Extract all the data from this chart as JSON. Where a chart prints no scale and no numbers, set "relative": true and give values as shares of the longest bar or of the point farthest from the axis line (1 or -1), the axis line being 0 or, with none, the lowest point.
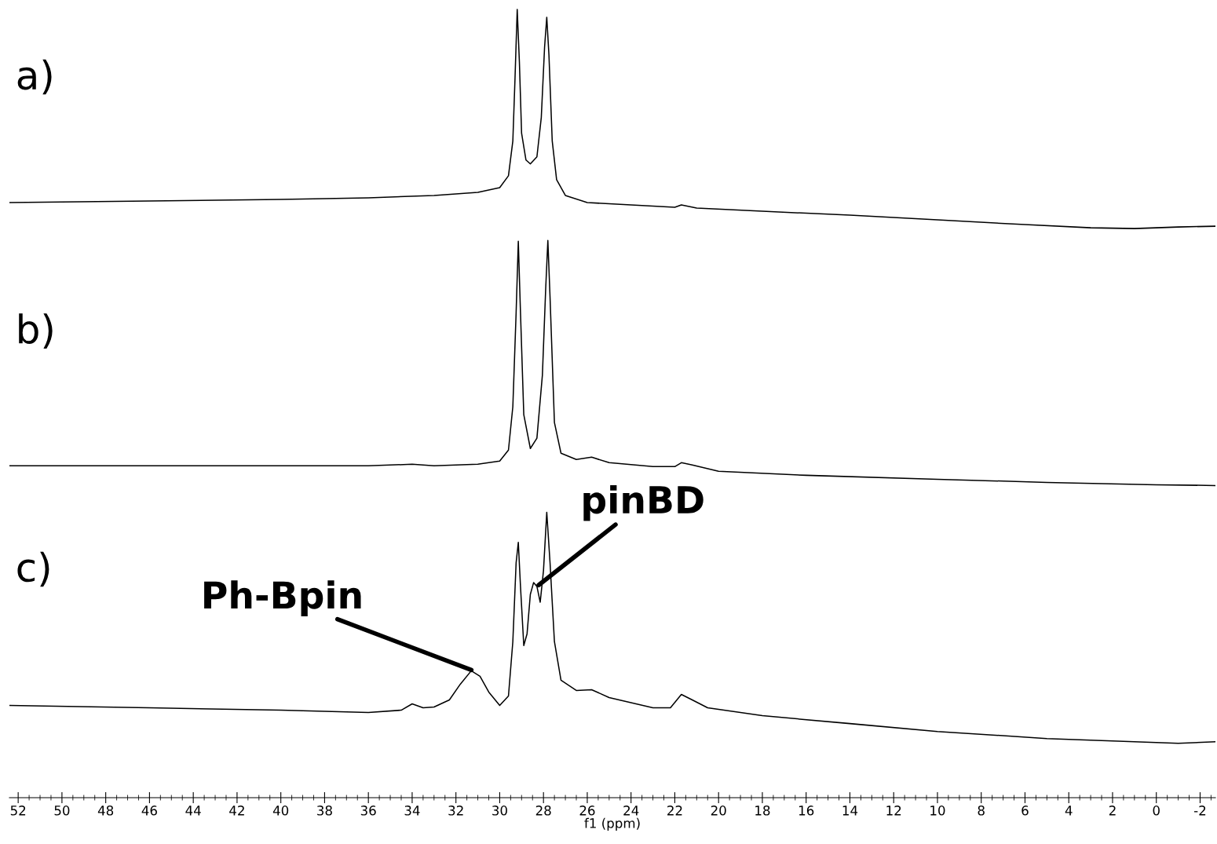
{
  "chart_data": {
    "type": "line",
    "relative": true,
    "xlim": [
      52.4,
      -2.7
    ],
    "xticks": [
      52,
      50,
      48,
      46,
      44,
      42,
      40,
      38,
      36,
      34,
      32,
      30,
      28,
      26,
      24,
      22,
      20,
      18,
      16,
      14,
      12,
      10,
      8,
      6,
      4,
      2,
      0,
      {
        "value": -2,
        "label": "-2"
      }
    ],
    "xlabel": "f1 (ppm)",
    "grid": false,
    "annotations": [
      "a)",
      "b)",
      "c)",
      {
        "text": "Ph-Bpin",
        "x": 31.2,
        "y": 0.161
      },
      {
        "text": "pinBD",
        "x": 28.3,
        "y": 0.268
      }
    ],
    "series": [
      {
        "color": "#000000",
        "x": [
          52.4,
          46,
          40,
          36,
          33,
          31,
          30,
          29.6,
          29.4,
          29.3,
          29.2,
          29.1,
          29.0,
          28.8,
          28.6,
          28.3,
          28.1,
          27.95,
          27.85,
          27.75,
          27.6,
          27.4,
          27.0,
          26,
          24,
          22,
          21.7,
          21,
          18,
          14,
          10,
          6,
          3,
          1,
          -1,
          -2.7
        ],
        "values": [
          0.755,
          0.757,
          0.759,
          0.761,
          0.764,
          0.768,
          0.774,
          0.789,
          0.833,
          0.913,
          1.0,
          0.933,
          0.843,
          0.809,
          0.804,
          0.813,
          0.863,
          0.952,
          0.99,
          0.942,
          0.833,
          0.784,
          0.764,
          0.755,
          0.752,
          0.749,
          0.752,
          0.748,
          0.744,
          0.739,
          0.733,
          0.727,
          0.723,
          0.722,
          0.724,
          0.725
        ]
      },
      {
        "color": "#000000",
        "x": [
          52.4,
          44,
          36,
          34,
          33,
          31,
          30,
          29.6,
          29.4,
          29.25,
          29.15,
          29.05,
          28.9,
          28.6,
          28.3,
          28.05,
          27.9,
          27.8,
          27.7,
          27.5,
          27.2,
          26.5,
          25.8,
          25,
          23,
          22,
          21.7,
          21.2,
          20,
          16,
          10,
          5,
          0,
          -2.7
        ],
        "values": [
          0.421,
          0.421,
          0.421,
          0.423,
          0.421,
          0.423,
          0.427,
          0.441,
          0.496,
          0.615,
          0.706,
          0.615,
          0.486,
          0.443,
          0.456,
          0.536,
          0.645,
          0.707,
          0.635,
          0.476,
          0.437,
          0.429,
          0.432,
          0.425,
          0.42,
          0.42,
          0.425,
          0.422,
          0.414,
          0.409,
          0.404,
          0.4,
          0.397,
          0.396
        ]
      },
      {
        "color": "#000000",
        "x": [
          52.4,
          46,
          40,
          36,
          34.5,
          34,
          33.5,
          33,
          32.3,
          31.8,
          31.3,
          30.9,
          30.5,
          30.0,
          29.6,
          29.4,
          29.25,
          29.15,
          29.05,
          28.9,
          28.75,
          28.6,
          28.45,
          28.3,
          28.15,
          28.0,
          27.85,
          27.7,
          27.5,
          27.2,
          26.5,
          25.8,
          25,
          23,
          22.2,
          21.7,
          21.2,
          20.5,
          18,
          14,
          10,
          5,
          1,
          -1,
          -2.7
        ],
        "values": [
          0.117,
          0.114,
          0.111,
          0.108,
          0.111,
          0.119,
          0.114,
          0.115,
          0.124,
          0.144,
          0.161,
          0.154,
          0.134,
          0.117,
          0.129,
          0.198,
          0.298,
          0.324,
          0.268,
          0.193,
          0.208,
          0.258,
          0.273,
          0.268,
          0.248,
          0.288,
          0.362,
          0.298,
          0.198,
          0.149,
          0.136,
          0.137,
          0.127,
          0.114,
          0.114,
          0.131,
          0.124,
          0.114,
          0.104,
          0.094,
          0.084,
          0.075,
          0.071,
          0.069,
          0.071
        ]
      }
    ]
  }
}
